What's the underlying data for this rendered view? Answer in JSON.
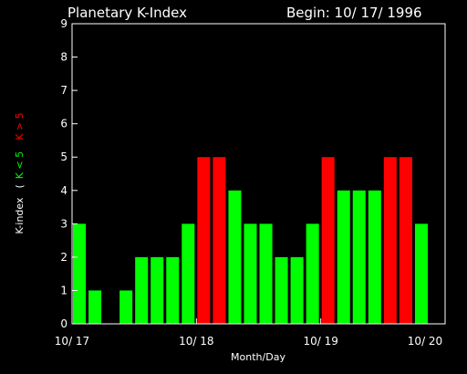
{
  "chart_data": {
    "type": "bar",
    "title": "Planetary K-Index",
    "subtitle": "Begin: 10/ 17/ 1996",
    "xlabel": "Month/Day",
    "ylabel_prefix": "K-index",
    "ylabel_open": "(",
    "ylabel_low": "K < 5",
    "ylabel_high": "K > 5",
    "ylim": [
      0,
      9
    ],
    "y_ticks": [
      "0",
      "1",
      "2",
      "3",
      "4",
      "5",
      "6",
      "7",
      "8",
      "9"
    ],
    "x_ticks": [
      "10/ 17",
      "10/ 18",
      "10/ 19",
      "10/ 20"
    ],
    "bars_per_day": 8,
    "days": 3,
    "values": [
      3,
      1,
      0,
      1,
      2,
      2,
      2,
      3,
      5,
      5,
      4,
      3,
      3,
      2,
      2,
      3,
      5,
      4,
      4,
      4,
      5,
      5,
      3,
      0
    ],
    "colors": {
      "low": "#00ff00",
      "high": "#ff0000",
      "axes": "#ffffff",
      "background": "#000000"
    }
  }
}
